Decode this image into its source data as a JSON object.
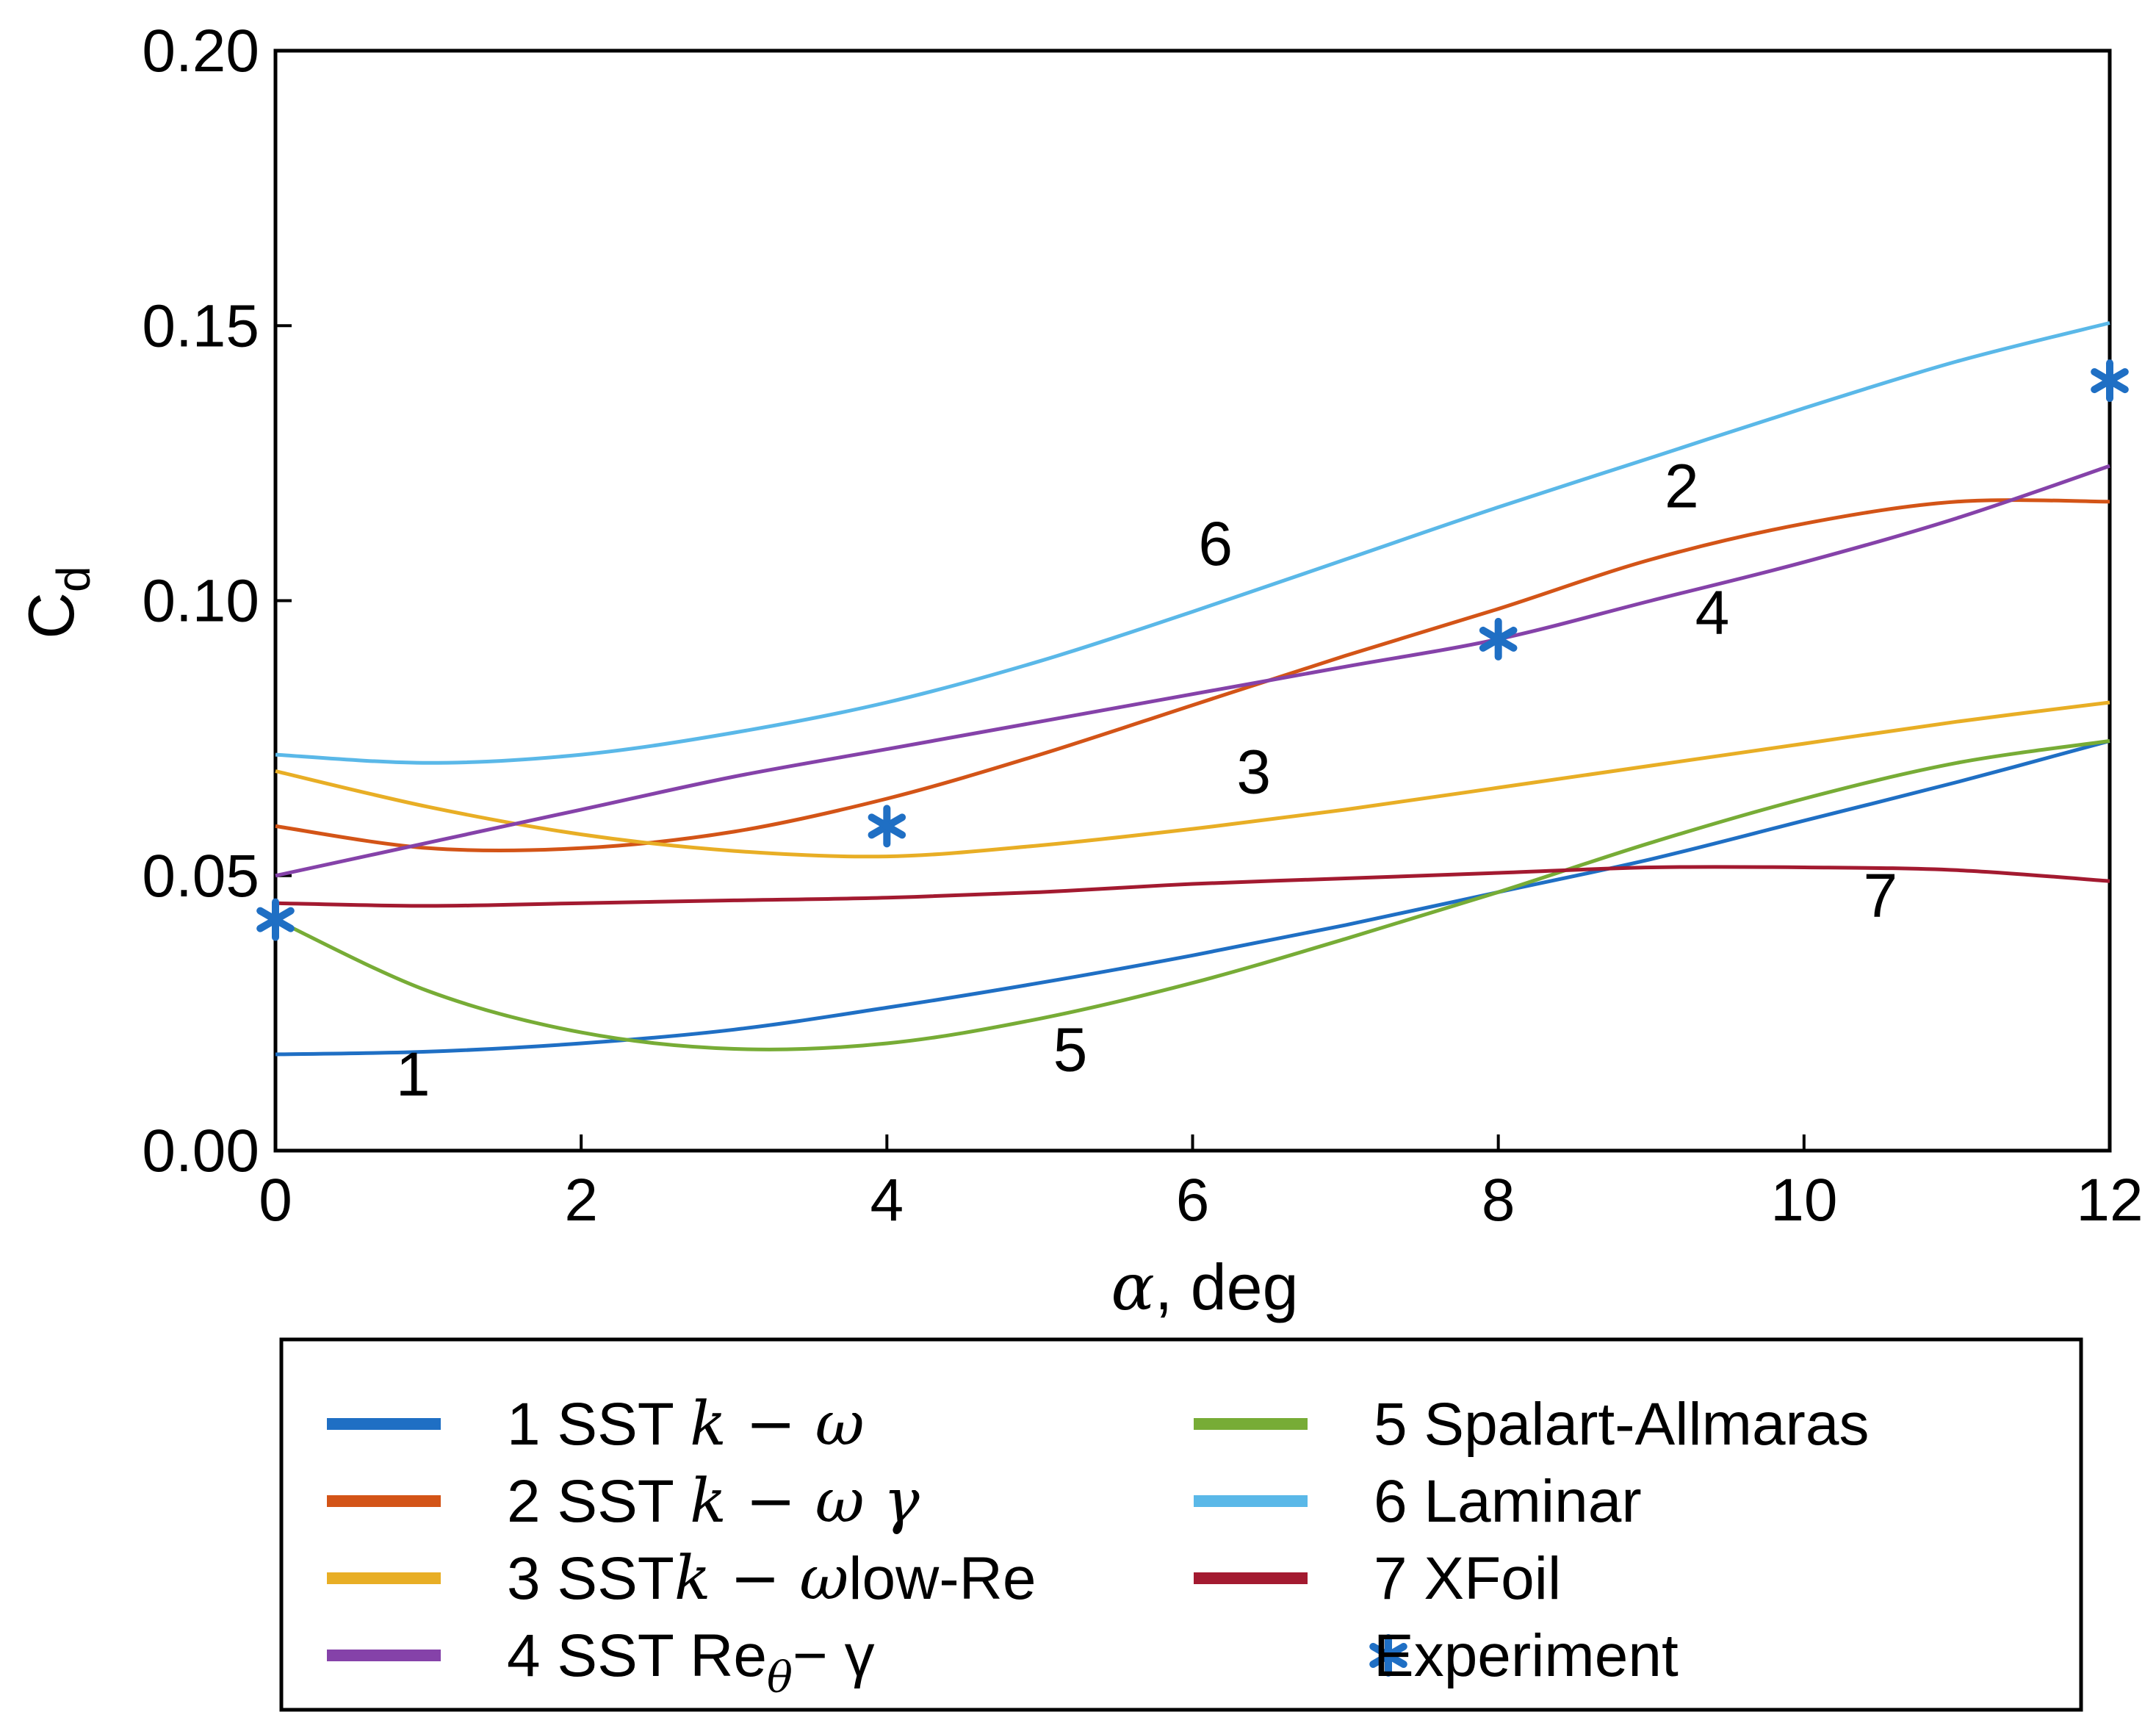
{
  "chart_data": {
    "type": "line",
    "xlabel": "α, deg",
    "ylabel": "Cd",
    "ylabel_main": "C",
    "ylabel_sub": "d",
    "xlim": [
      0,
      12
    ],
    "ylim": [
      0,
      0.2
    ],
    "xticks": [
      0,
      2,
      4,
      6,
      8,
      10,
      12
    ],
    "xtick_labels": [
      "0",
      "2",
      "4",
      "6",
      "8",
      "10",
      "12"
    ],
    "yticks": [
      0,
      0.05,
      0.1,
      0.15,
      0.2
    ],
    "ytick_labels": [
      "0.00",
      "0.05",
      "0.10",
      "0.15",
      "0.20"
    ],
    "grid": false,
    "series": [
      {
        "id": "1",
        "name": "1 SST k − ω",
        "label_num": "1",
        "color": "#1f6fc4",
        "x": [
          0,
          1,
          2,
          3,
          4,
          5,
          6,
          7,
          8,
          9,
          10,
          11,
          12
        ],
        "y": [
          0.0175,
          0.018,
          0.0195,
          0.022,
          0.026,
          0.0305,
          0.0355,
          0.041,
          0.047,
          0.053,
          0.06,
          0.067,
          0.0745
        ]
      },
      {
        "id": "2",
        "name": "2 SST k − ω γ",
        "label_num": "2",
        "color": "#d35417",
        "x": [
          0,
          1,
          2,
          3,
          4,
          5,
          6,
          7,
          8,
          9,
          10,
          11,
          12
        ],
        "y": [
          0.059,
          0.055,
          0.055,
          0.058,
          0.064,
          0.072,
          0.081,
          0.09,
          0.0985,
          0.1075,
          0.114,
          0.118,
          0.118
        ]
      },
      {
        "id": "3",
        "name": "3 SST k − ω low-Re",
        "label_num": "3",
        "color": "#e8ae25",
        "x": [
          0,
          1,
          2,
          3,
          4,
          5,
          6,
          7,
          8,
          9,
          10,
          11,
          12
        ],
        "y": [
          0.069,
          0.0625,
          0.0575,
          0.0545,
          0.0535,
          0.0555,
          0.0585,
          0.062,
          0.066,
          0.07,
          0.074,
          0.078,
          0.0815
        ]
      },
      {
        "id": "4",
        "name": "4 SST Reθ − γ",
        "label_num": "4",
        "color": "#8542a9",
        "x": [
          0,
          1,
          2,
          3,
          4,
          5,
          6,
          7,
          8,
          9,
          10,
          11,
          12
        ],
        "y": [
          0.05,
          0.056,
          0.062,
          0.068,
          0.073,
          0.078,
          0.083,
          0.088,
          0.093,
          0.1,
          0.107,
          0.115,
          0.1245
        ]
      },
      {
        "id": "5",
        "name": "5 Spalart-Allmaras",
        "label_num": "5",
        "color": "#77ac36",
        "x": [
          0,
          1,
          2,
          3,
          4,
          5,
          6,
          7,
          8,
          9,
          10,
          11,
          12
        ],
        "y": [
          0.042,
          0.029,
          0.0215,
          0.0185,
          0.0195,
          0.024,
          0.0305,
          0.0385,
          0.047,
          0.056,
          0.064,
          0.0705,
          0.0745
        ]
      },
      {
        "id": "6",
        "name": "6 Laminar",
        "label_num": "6",
        "color": "#5ab8e8",
        "x": [
          0,
          1,
          2,
          3,
          4,
          5,
          6,
          7,
          8,
          9,
          10,
          11,
          12
        ],
        "y": [
          0.072,
          0.0705,
          0.072,
          0.076,
          0.0815,
          0.089,
          0.098,
          0.1075,
          0.117,
          0.126,
          0.135,
          0.1435,
          0.1505
        ]
      },
      {
        "id": "7",
        "name": "7 XFoil",
        "label_num": "7",
        "color": "#a31a30",
        "x": [
          0,
          1,
          2,
          3,
          4,
          5,
          6,
          7,
          8,
          9,
          10,
          11,
          12
        ],
        "y": [
          0.045,
          0.0445,
          0.045,
          0.0455,
          0.046,
          0.047,
          0.0485,
          0.0495,
          0.0505,
          0.0515,
          0.0515,
          0.051,
          0.049
        ]
      }
    ],
    "experiment": {
      "name": "Experiment",
      "color": "#1f6fc4",
      "x": [
        0,
        4,
        8,
        12
      ],
      "y": [
        0.042,
        0.059,
        0.093,
        0.14
      ]
    },
    "annotations": [
      {
        "text": "1",
        "x": 0.9,
        "y": 0.01
      },
      {
        "text": "2",
        "x": 9.2,
        "y": 0.117
      },
      {
        "text": "3",
        "x": 6.4,
        "y": 0.065
      },
      {
        "text": "4",
        "x": 9.4,
        "y": 0.094
      },
      {
        "text": "5",
        "x": 5.2,
        "y": 0.0145
      },
      {
        "text": "6",
        "x": 6.15,
        "y": 0.1065
      },
      {
        "text": "7",
        "x": 10.5,
        "y": 0.0425
      }
    ],
    "legend": {
      "placement": "below",
      "entries": [
        {
          "series": "1",
          "text": "1 SST ",
          "math": "k − ω",
          "suffix": ""
        },
        {
          "series": "2",
          "text": "2 SST ",
          "math": "k − ω γ",
          "suffix": ""
        },
        {
          "series": "3",
          "text": "3 SST",
          "math": "k − ω",
          "suffix": "low-Re"
        },
        {
          "series": "4",
          "text": "4 SST Re",
          "math": "θ",
          "suffix": "− γ"
        },
        {
          "series": "5",
          "text": "5 Spalart-Allmaras",
          "math": "",
          "suffix": ""
        },
        {
          "series": "6",
          "text": "6 Laminar",
          "math": "",
          "suffix": ""
        },
        {
          "series": "7",
          "text": "7 XFoil",
          "math": "",
          "suffix": ""
        },
        {
          "series": "experiment",
          "text": "Experiment",
          "math": "",
          "suffix": ""
        }
      ]
    }
  }
}
